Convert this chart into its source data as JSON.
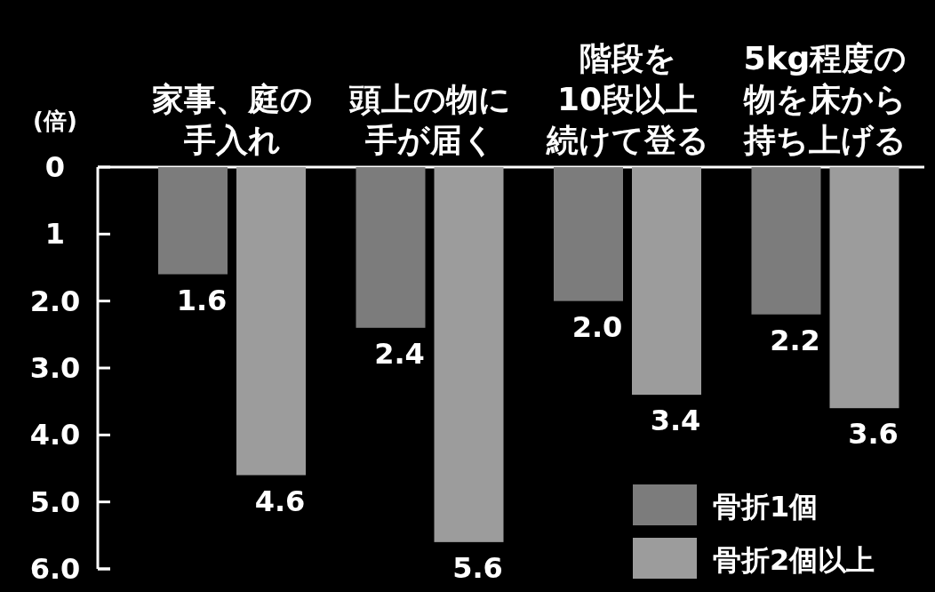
{
  "chart_data": {
    "type": "bar",
    "ylabel": "(倍)",
    "categories": [
      "家事、庭の手入れ",
      "頭上の物に手が届く",
      "階段を10段以上続けて登る",
      "5kg程度の物を床から持ち上げる"
    ],
    "series": [
      {
        "name": "骨折1個",
        "color": "#7c7c7c",
        "values": [
          1.6,
          2.4,
          2.0,
          2.2
        ],
        "value_labels": [
          "1.6",
          "2.4",
          "2.0",
          "2.2"
        ]
      },
      {
        "name": "骨折2個以上",
        "color": "#9c9c9c",
        "values": [
          4.6,
          5.6,
          3.4,
          3.6
        ],
        "value_labels": [
          "4.6",
          "5.6",
          "3.4",
          "3.6"
        ]
      }
    ],
    "ylim": [
      6,
      0
    ],
    "yticks": [
      0,
      1,
      {
        "value": 2,
        "label": "2.0"
      },
      {
        "value": 3,
        "label": "3.0"
      },
      {
        "value": 4,
        "label": "4.0"
      },
      {
        "value": 5,
        "label": "5.0"
      },
      {
        "value": 6,
        "label": "6.0"
      }
    ],
    "grid": false,
    "legend": "bottom right"
  }
}
